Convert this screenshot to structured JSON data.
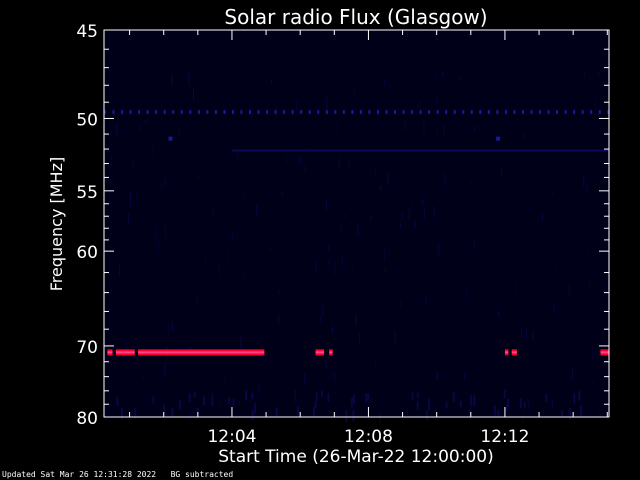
{
  "footer": {
    "updated": "Updated Sat Mar 26 12:31:28 2022",
    "note": "BG subtracted"
  },
  "colors": {
    "background": "#000000",
    "axis": "#ffffff",
    "plot_bg": "#000018",
    "noise": "#0a0a55",
    "spot": "#1a1aa0",
    "burst_edge": "#ff0033",
    "burst_core": "#ff4488"
  },
  "chart_data": {
    "type": "heatmap",
    "title": "Solar radio Flux (Glasgow)",
    "xlabel": "Start Time (26-Mar-22 12:00:00)",
    "ylabel": "Frequency [MHz]",
    "xlim_minutes": [
      0.25,
      15.05
    ],
    "ylim_mhz": [
      45,
      80
    ],
    "y_scale": "reciprocal",
    "x_ticks": [
      {
        "value": 4,
        "label": "12:04"
      },
      {
        "value": 8,
        "label": "12:08"
      },
      {
        "value": 12,
        "label": "12:12"
      }
    ],
    "x_minor_step": 1,
    "y_ticks": [
      {
        "value": 45,
        "label": "45"
      },
      {
        "value": 50,
        "label": "50"
      },
      {
        "value": 55,
        "label": "55"
      },
      {
        "value": 60,
        "label": "60"
      },
      {
        "value": 70,
        "label": "70"
      },
      {
        "value": 80,
        "label": "80"
      }
    ],
    "y_minor": [
      46,
      47,
      48,
      49,
      51,
      52,
      53,
      54,
      56,
      57,
      58,
      59,
      62,
      64,
      66,
      68,
      72,
      74,
      76,
      78
    ],
    "features": [
      {
        "kind": "interference_line",
        "freq_mhz": 70.8,
        "intensity": "high",
        "segments_minutes": [
          [
            0.35,
            0.5
          ],
          [
            0.6,
            1.15
          ],
          [
            1.25,
            4.95
          ],
          [
            6.45,
            6.7
          ],
          [
            6.85,
            6.95
          ],
          [
            12.0,
            12.1
          ],
          [
            12.2,
            12.35
          ],
          [
            14.8,
            15.05
          ]
        ]
      },
      {
        "kind": "dotted_line",
        "freq_mhz": 49.6,
        "intensity": "low",
        "range_minutes": [
          0.25,
          15.05
        ],
        "step_minutes": 0.25
      },
      {
        "kind": "faint_band",
        "freq_mhz": 52.1,
        "intensity": "low",
        "range_minutes": [
          4.0,
          15.05
        ]
      },
      {
        "kind": "spot",
        "freq_mhz": 51.3,
        "time_minutes": 2.2,
        "intensity": "medium"
      },
      {
        "kind": "spot",
        "freq_mhz": 51.3,
        "time_minutes": 11.8,
        "intensity": "medium"
      }
    ]
  }
}
